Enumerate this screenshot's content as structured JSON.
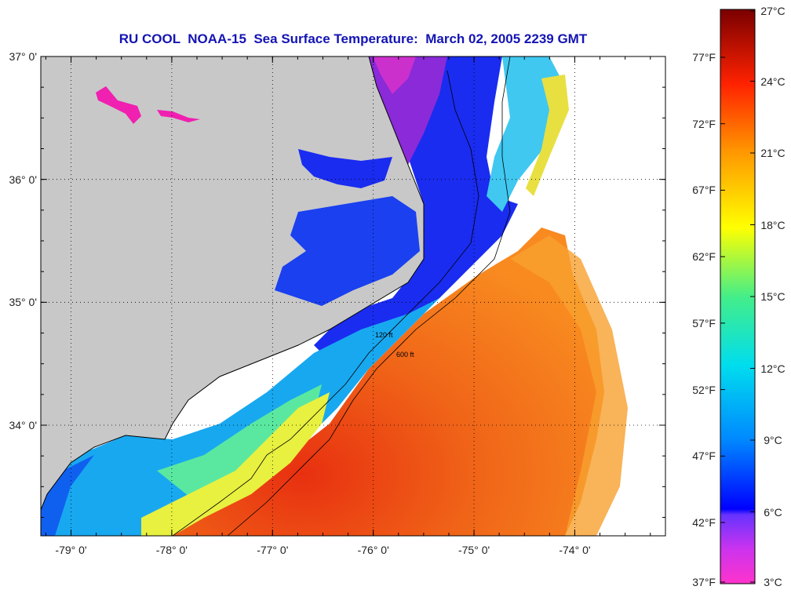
{
  "title": "RU COOL  NOAA-15  Sea Surface Temperature:  March 02, 2005 2239 GMT",
  "map": {
    "lat_range": [
      33.1,
      37.0
    ],
    "lon_range": [
      -79.3,
      -73.1
    ],
    "lat_ticks": [
      {
        "value": 37,
        "label": "37° 0'"
      },
      {
        "value": 36,
        "label": "36° 0'"
      },
      {
        "value": 35,
        "label": "35° 0'"
      },
      {
        "value": 34,
        "label": "34° 0'"
      }
    ],
    "lon_ticks": [
      {
        "value": -79,
        "label": "-79° 0'"
      },
      {
        "value": -78,
        "label": "-78° 0'"
      },
      {
        "value": -77,
        "label": "-77° 0'"
      },
      {
        "value": -76,
        "label": "-76° 0'"
      },
      {
        "value": -75,
        "label": "-75° 0'"
      },
      {
        "value": -74,
        "label": "-74° 0'"
      }
    ],
    "land_color": "#c8c8c8",
    "gridlines": "dotted",
    "isobath_labels": [
      "120 ft",
      "600 ft"
    ]
  },
  "colorbar": {
    "range_c": [
      3,
      27
    ],
    "celsius_labels": [
      {
        "value": 27,
        "label": "27°C"
      },
      {
        "value": 24,
        "label": "24°C"
      },
      {
        "value": 21,
        "label": "21°C"
      },
      {
        "value": 18,
        "label": "18°C"
      },
      {
        "value": 15,
        "label": "15°C"
      },
      {
        "value": 12,
        "label": "12°C"
      },
      {
        "value": 9,
        "label": "9°C"
      },
      {
        "value": 6,
        "label": "6°C"
      },
      {
        "value": 3,
        "label": "3°C"
      }
    ],
    "fahrenheit_labels": [
      {
        "value": 77,
        "label": "77°F"
      },
      {
        "value": 72,
        "label": "72°F"
      },
      {
        "value": 67,
        "label": "67°F"
      },
      {
        "value": 62,
        "label": "62°F"
      },
      {
        "value": 57,
        "label": "57°F"
      },
      {
        "value": 52,
        "label": "52°F"
      },
      {
        "value": 47,
        "label": "47°F"
      },
      {
        "value": 42,
        "label": "42°F"
      },
      {
        "value": 37,
        "label": "37°F"
      }
    ],
    "colors": [
      "#ff33cc",
      "#9933ff",
      "#0000ff",
      "#00ccff",
      "#33ff99",
      "#ffff00",
      "#ff9900",
      "#ff0000",
      "#800000"
    ]
  }
}
